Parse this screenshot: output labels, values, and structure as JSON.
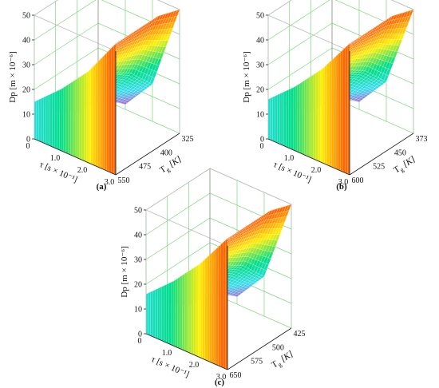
{
  "figure": {
    "panels": [
      {
        "label": "(a)",
        "zlabel": "Dp [m × 10⁻⁶]",
        "xlabel": "τ [s × 10⁻¹]",
        "ylabel_main": "T",
        "ylabel_sub": "g",
        "ylabel_unit": "[K]",
        "zticks": [
          "0",
          "10",
          "20",
          "30",
          "40",
          "50"
        ],
        "xticks": [
          "0",
          "1.0",
          "2.0",
          "3.0"
        ],
        "yticks": [
          "325",
          "400",
          "475",
          "550"
        ]
      },
      {
        "label": "(b)",
        "zlabel": "Dp [m × 10⁻⁶]",
        "xlabel": "τ [s × 10⁻¹]",
        "ylabel_main": "T",
        "ylabel_sub": "g",
        "ylabel_unit": "[K]",
        "zticks": [
          "0",
          "10",
          "20",
          "30",
          "40",
          "50"
        ],
        "xticks": [
          "0",
          "1.0",
          "2.0",
          "3.0"
        ],
        "yticks": [
          "373",
          "450",
          "525",
          "600"
        ]
      },
      {
        "label": "(c)",
        "zlabel": "Dp [m × 10⁻⁶]",
        "xlabel": "τ [s × 10⁻¹]",
        "ylabel_main": "T",
        "ylabel_sub": "g",
        "ylabel_unit": "[K]",
        "zticks": [
          "0",
          "10",
          "20",
          "30",
          "40",
          "50"
        ],
        "xticks": [
          "0",
          "1.0",
          "2.0",
          "3.0"
        ],
        "yticks": [
          "425",
          "500",
          "575",
          "650"
        ]
      }
    ]
  },
  "chart_data": [
    {
      "type": "surface",
      "x_quantity": "τ [s × 10⁻¹]",
      "y_quantity": "Tg [K]",
      "z_quantity": "Dp [m × 10⁻⁶]",
      "xlim": [
        0,
        3.0
      ],
      "ylim": [
        325,
        550
      ],
      "zlim": [
        0,
        50
      ],
      "x": [
        0,
        1.0,
        2.0,
        3.0
      ],
      "y": [
        325,
        400,
        475,
        550
      ],
      "z": [
        [
          53,
          53,
          53,
          50
        ],
        [
          37,
          31,
          25,
          15
        ],
        [
          25,
          18,
          10,
          2
        ],
        [
          15,
          6,
          0,
          0
        ]
      ],
      "colormap": [
        "#ff6600",
        "#ffee00",
        "#00dd88",
        "#33ddee",
        "#cc44cc"
      ],
      "grid": true
    },
    {
      "type": "surface",
      "x_quantity": "τ [s × 10⁻¹]",
      "y_quantity": "Tg [K]",
      "z_quantity": "Dp [m × 10⁻⁶]",
      "xlim": [
        0,
        3.0
      ],
      "ylim": [
        373,
        600
      ],
      "zlim": [
        0,
        50
      ],
      "x": [
        0,
        1.0,
        2.0,
        3.0
      ],
      "y": [
        373,
        450,
        525,
        600
      ],
      "z": [
        [
          53,
          53,
          53,
          50
        ],
        [
          38,
          32,
          26,
          16
        ],
        [
          26,
          19,
          11,
          3
        ],
        [
          16,
          7,
          0,
          0
        ]
      ],
      "colormap": [
        "#ff6600",
        "#ffee00",
        "#00dd88",
        "#33ddee",
        "#cc44cc"
      ],
      "grid": true
    },
    {
      "type": "surface",
      "x_quantity": "τ [s × 10⁻¹]",
      "y_quantity": "Tg [K]",
      "z_quantity": "Dp [m × 10⁻⁶]",
      "xlim": [
        0,
        3.0
      ],
      "ylim": [
        425,
        650
      ],
      "zlim": [
        0,
        50
      ],
      "x": [
        0,
        1.0,
        2.0,
        3.0
      ],
      "y": [
        425,
        500,
        575,
        650
      ],
      "z": [
        [
          53,
          53,
          53,
          50
        ],
        [
          38,
          32,
          26,
          16
        ],
        [
          26,
          19,
          11,
          3
        ],
        [
          16,
          7,
          0,
          0
        ]
      ],
      "colormap": [
        "#ff6600",
        "#ffee00",
        "#00dd88",
        "#33ddee",
        "#cc44cc"
      ],
      "grid": true
    }
  ]
}
